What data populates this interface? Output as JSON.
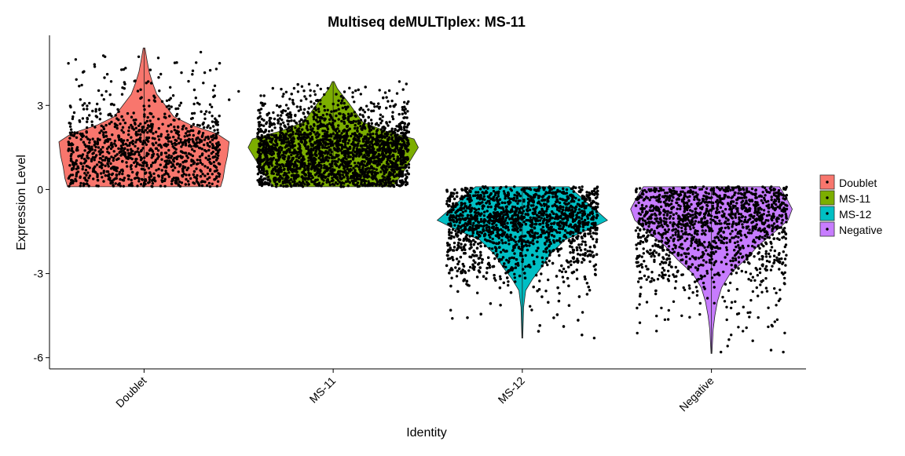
{
  "chart_data": {
    "type": "violin",
    "title": "Multiseq deMULTIplex: MS-11",
    "xlabel": "Identity",
    "ylabel": "Expression Level",
    "categories": [
      "Doublet",
      "MS-11",
      "MS-12",
      "Negative"
    ],
    "ylim": [
      -6.4,
      5.5
    ],
    "yticks": [
      -6,
      -3,
      0,
      3
    ],
    "ytick_labels": [
      "-6",
      "-3",
      "0",
      "3"
    ],
    "grid": false,
    "legend_position": "right",
    "legend": [
      {
        "label": "Doublet",
        "color": "#F8766D"
      },
      {
        "label": "MS-11",
        "color": "#7CAE00"
      },
      {
        "label": "MS-12",
        "color": "#00BFC4"
      },
      {
        "label": "Negative",
        "color": "#C77CFF"
      }
    ],
    "series": [
      {
        "name": "Doublet",
        "color": "#F8766D",
        "min": 0.1,
        "max": 5.05,
        "n_points": 1100,
        "density": [
          [
            0.1,
            0.9
          ],
          [
            0.4,
            0.93
          ],
          [
            0.8,
            0.95
          ],
          [
            1.2,
            0.98
          ],
          [
            1.7,
            1.0
          ],
          [
            2.0,
            0.85
          ],
          [
            2.3,
            0.55
          ],
          [
            2.6,
            0.35
          ],
          [
            3.0,
            0.25
          ],
          [
            3.4,
            0.15
          ],
          [
            3.8,
            0.1
          ],
          [
            4.2,
            0.06
          ],
          [
            4.6,
            0.035
          ],
          [
            5.05,
            0.01
          ]
        ],
        "outliers": [
          [
            -0.4,
            4.5
          ],
          [
            -0.2,
            3.5
          ],
          [
            0.35,
            4.25
          ],
          [
            0.3,
            4.9
          ],
          [
            0.45,
            3.2
          ],
          [
            0.5,
            3.5
          ]
        ]
      },
      {
        "name": "MS-11",
        "color": "#7CAE00",
        "min": 0.1,
        "max": 3.85,
        "n_points": 2600,
        "density": [
          [
            0.1,
            0.7
          ],
          [
            0.5,
            0.8
          ],
          [
            1.0,
            0.9
          ],
          [
            1.5,
            1.0
          ],
          [
            1.8,
            0.95
          ],
          [
            2.1,
            0.6
          ],
          [
            2.4,
            0.35
          ],
          [
            2.8,
            0.25
          ],
          [
            3.1,
            0.18
          ],
          [
            3.4,
            0.1
          ],
          [
            3.6,
            0.05
          ],
          [
            3.85,
            0.01
          ]
        ],
        "outliers": [
          [
            0.35,
            3.85
          ]
        ]
      },
      {
        "name": "MS-12",
        "color": "#00BFC4",
        "min": -5.3,
        "max": 0.1,
        "n_points": 2600,
        "density": [
          [
            0.1,
            0.55
          ],
          [
            -0.3,
            0.7
          ],
          [
            -0.7,
            0.85
          ],
          [
            -1.1,
            1.0
          ],
          [
            -1.4,
            0.8
          ],
          [
            -1.8,
            0.5
          ],
          [
            -2.3,
            0.33
          ],
          [
            -2.8,
            0.22
          ],
          [
            -3.2,
            0.12
          ],
          [
            -3.6,
            0.04
          ],
          [
            -4.2,
            0.015
          ],
          [
            -5.3,
            0.005
          ]
        ],
        "outliers": [
          [
            -0.37,
            -4.6
          ],
          [
            0.38,
            -5.3
          ],
          [
            0.05,
            -4.3
          ]
        ]
      },
      {
        "name": "Negative",
        "color": "#C77CFF",
        "min": -5.85,
        "max": 0.1,
        "n_points": 1500,
        "density": [
          [
            0.1,
            0.8
          ],
          [
            -0.3,
            0.88
          ],
          [
            -0.7,
            0.95
          ],
          [
            -1.1,
            0.9
          ],
          [
            -1.5,
            0.75
          ],
          [
            -2.0,
            0.55
          ],
          [
            -2.5,
            0.4
          ],
          [
            -3.0,
            0.22
          ],
          [
            -3.5,
            0.12
          ],
          [
            -4.0,
            0.07
          ],
          [
            -4.5,
            0.04
          ],
          [
            -5.0,
            0.02
          ],
          [
            -5.85,
            0.005
          ]
        ],
        "outliers": [
          [
            -0.38,
            -4.1
          ],
          [
            0.05,
            -5.8
          ],
          [
            0.38,
            -5.8
          ],
          [
            0.3,
            -4.9
          ],
          [
            0.2,
            -4.55
          ],
          [
            -0.2,
            -4.0
          ]
        ]
      }
    ]
  }
}
